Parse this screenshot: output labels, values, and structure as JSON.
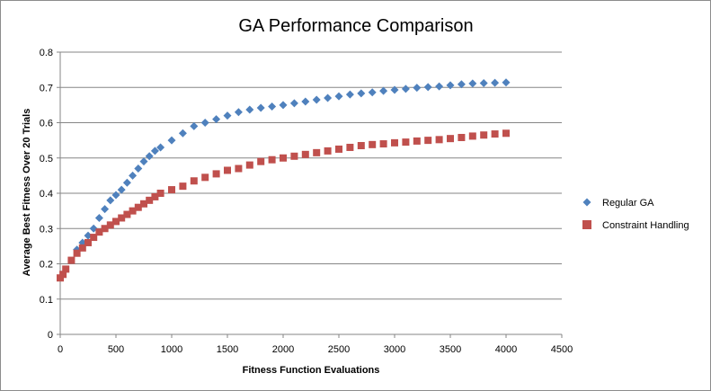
{
  "chart_data": {
    "type": "scatter",
    "title": "GA Performance Comparison",
    "xlabel": "Fitness Function Evaluations",
    "ylabel": "Average Best Fitness Over 20 Trials",
    "xlim": [
      0,
      4500
    ],
    "ylim": [
      0,
      0.8
    ],
    "xticks": [
      0,
      500,
      1000,
      1500,
      2000,
      2500,
      3000,
      3500,
      4000,
      4500
    ],
    "yticks": [
      0,
      0.1,
      0.2,
      0.3,
      0.4,
      0.5,
      0.6,
      0.7,
      0.8
    ],
    "grid": "horizontal",
    "legend_position": "right",
    "series": [
      {
        "name": "Regular GA",
        "color": "#4f81bd",
        "marker": "diamond",
        "x": [
          150,
          200,
          250,
          300,
          350,
          400,
          450,
          500,
          550,
          600,
          650,
          700,
          750,
          800,
          850,
          900,
          1000,
          1100,
          1200,
          1300,
          1400,
          1500,
          1600,
          1700,
          1800,
          1900,
          2000,
          2100,
          2200,
          2300,
          2400,
          2500,
          2600,
          2700,
          2800,
          2900,
          3000,
          3100,
          3200,
          3300,
          3400,
          3500,
          3600,
          3700,
          3800,
          3900,
          4000
        ],
        "y": [
          0.24,
          0.26,
          0.28,
          0.3,
          0.33,
          0.355,
          0.38,
          0.395,
          0.41,
          0.43,
          0.45,
          0.47,
          0.49,
          0.505,
          0.52,
          0.53,
          0.55,
          0.57,
          0.59,
          0.6,
          0.61,
          0.62,
          0.63,
          0.637,
          0.642,
          0.646,
          0.65,
          0.655,
          0.66,
          0.665,
          0.67,
          0.675,
          0.68,
          0.683,
          0.686,
          0.69,
          0.693,
          0.696,
          0.699,
          0.701,
          0.703,
          0.706,
          0.709,
          0.711,
          0.712,
          0.713,
          0.714
        ]
      },
      {
        "name": "Constraint Handling",
        "color": "#c0504d",
        "marker": "square",
        "x": [
          0,
          25,
          50,
          100,
          150,
          200,
          250,
          300,
          350,
          400,
          450,
          500,
          550,
          600,
          650,
          700,
          750,
          800,
          850,
          900,
          1000,
          1100,
          1200,
          1300,
          1400,
          1500,
          1600,
          1700,
          1800,
          1900,
          2000,
          2100,
          2200,
          2300,
          2400,
          2500,
          2600,
          2700,
          2800,
          2900,
          3000,
          3100,
          3200,
          3300,
          3400,
          3500,
          3600,
          3700,
          3800,
          3900,
          4000
        ],
        "y": [
          0.16,
          0.17,
          0.185,
          0.21,
          0.23,
          0.245,
          0.26,
          0.275,
          0.29,
          0.3,
          0.31,
          0.32,
          0.33,
          0.34,
          0.35,
          0.36,
          0.37,
          0.38,
          0.39,
          0.4,
          0.41,
          0.42,
          0.435,
          0.445,
          0.455,
          0.465,
          0.47,
          0.48,
          0.49,
          0.495,
          0.5,
          0.505,
          0.51,
          0.515,
          0.52,
          0.525,
          0.53,
          0.535,
          0.538,
          0.54,
          0.543,
          0.545,
          0.548,
          0.55,
          0.552,
          0.555,
          0.558,
          0.562,
          0.565,
          0.568,
          0.57
        ]
      }
    ]
  }
}
